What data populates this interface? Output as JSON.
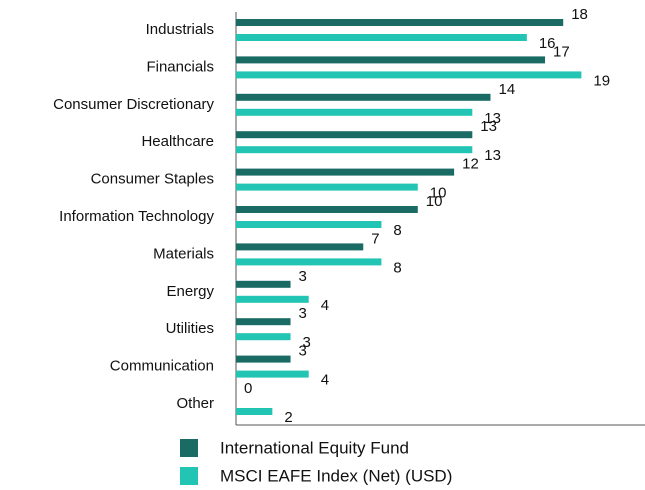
{
  "chart_data": {
    "type": "bar",
    "orientation": "horizontal",
    "categories": [
      "Industrials",
      "Financials",
      "Consumer Discretionary",
      "Healthcare",
      "Consumer Staples",
      "Information Technology",
      "Materials",
      "Energy",
      "Utilities",
      "Communication",
      "Other"
    ],
    "series": [
      {
        "name": "International Equity Fund",
        "color": "#1a6b63",
        "values": [
          18,
          17,
          14,
          13,
          12,
          10,
          7,
          3,
          3,
          3,
          0
        ]
      },
      {
        "name": "MSCI EAFE Index (Net) (USD)",
        "color": "#22c4b4",
        "values": [
          16,
          19,
          13,
          13,
          10,
          8,
          8,
          4,
          3,
          4,
          2
        ]
      }
    ],
    "xlim": [
      0,
      22.5
    ]
  }
}
